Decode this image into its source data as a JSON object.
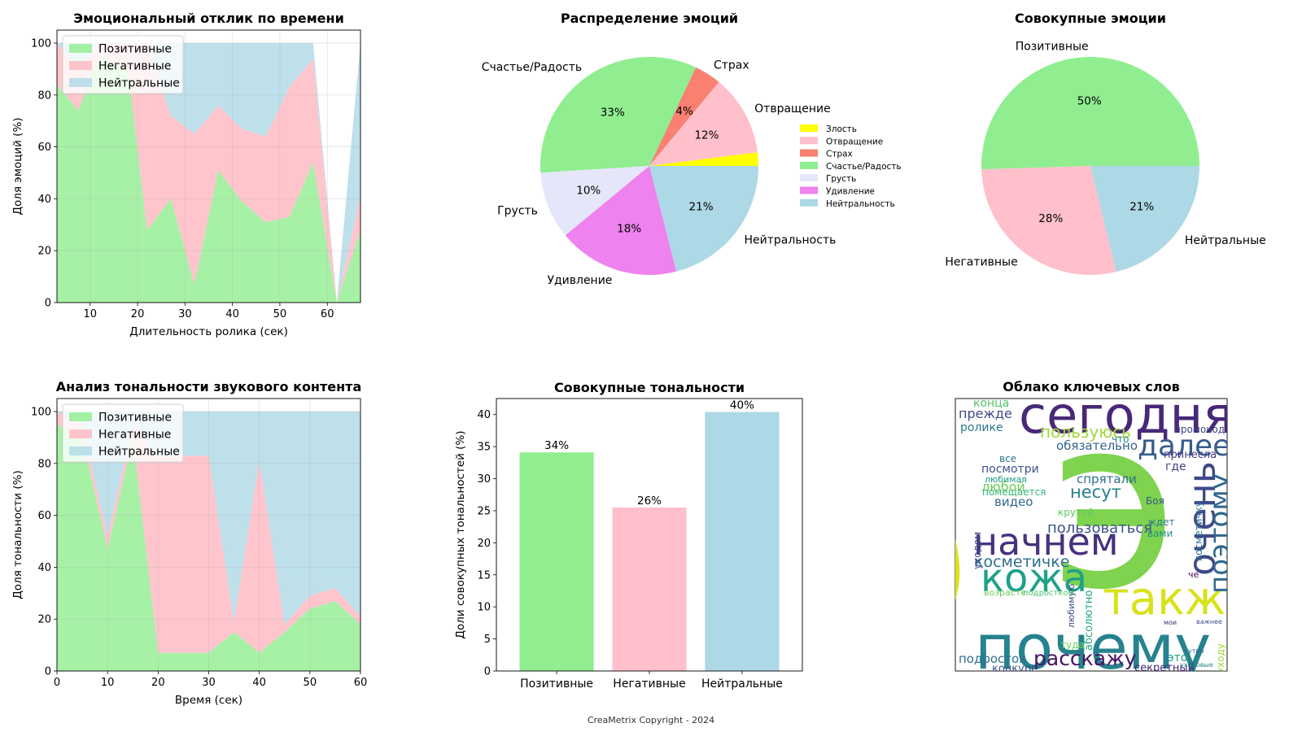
{
  "footer": "CreaMetrix Copyright - 2024",
  "chart_data": [
    {
      "id": "emotional_response",
      "type": "area",
      "title": "Эмоциональный отклик по времени",
      "xlabel": "Длительность ролика (сек)",
      "ylabel": "Доля эмоций (%)",
      "xlim": [
        3,
        67
      ],
      "ylim": [
        0,
        105
      ],
      "xticks": [
        10,
        20,
        30,
        40,
        50,
        60
      ],
      "yticks": [
        0,
        20,
        40,
        60,
        80,
        100
      ],
      "grid": true,
      "legend": "top-left",
      "x": [
        3,
        7.5,
        12,
        18,
        22,
        27,
        32,
        37,
        42,
        47,
        52,
        57,
        62,
        67
      ],
      "series": [
        {
          "name": "Позитивные",
          "color": "#90ee90",
          "values": [
            84,
            74,
            95,
            90,
            28,
            40,
            7,
            51,
            39,
            31,
            33,
            54,
            0,
            28
          ]
        },
        {
          "name": "Негативные",
          "color": "#ffb6c1",
          "values": [
            16,
            16,
            5,
            10,
            72,
            32,
            58,
            25,
            28,
            33,
            50,
            40,
            0,
            13
          ]
        },
        {
          "name": "Нейтральные",
          "color": "#add8e6",
          "values": [
            0,
            10,
            0,
            0,
            0,
            28,
            35,
            24,
            33,
            36,
            17,
            6,
            0,
            59
          ]
        }
      ]
    },
    {
      "id": "emotion_distribution",
      "type": "pie",
      "title": "Распределение эмоций",
      "legend": "right",
      "slices": [
        {
          "label": "Злость",
          "value": 2,
          "pct": "",
          "color": "#ffff00"
        },
        {
          "label": "Отвращение",
          "value": 12,
          "pct": "12%",
          "color": "#ffc0cb"
        },
        {
          "label": "Страх",
          "value": 4,
          "pct": "4%",
          "color": "#fa8072"
        },
        {
          "label": "Счастье/Радость",
          "value": 33,
          "pct": "33%",
          "color": "#90ee90"
        },
        {
          "label": "Грусть",
          "value": 10,
          "pct": "10%",
          "color": "#e6e6fa"
        },
        {
          "label": "Удивление",
          "value": 18,
          "pct": "18%",
          "color": "#ee82ee"
        },
        {
          "label": "Нейтральность",
          "value": 21,
          "pct": "21%",
          "color": "#add8e6"
        }
      ],
      "outer_labels": [
        "",
        "Отвращение",
        "Страх",
        "Счастье/Радость",
        "Грусть",
        "Удивление",
        "Нейтральность"
      ]
    },
    {
      "id": "total_emotions",
      "type": "pie",
      "title": "Совокупные эмоции",
      "slices": [
        {
          "label": "Позитивные",
          "value": 50,
          "pct": "50%",
          "color": "#90ee90"
        },
        {
          "label": "Негативные",
          "value": 28,
          "pct": "28%",
          "color": "#ffc0cb"
        },
        {
          "label": "Нейтральные",
          "value": 21,
          "pct": "21%",
          "color": "#add8e6"
        }
      ]
    },
    {
      "id": "audio_tonality",
      "type": "area",
      "title": "Анализ тональности звукового контента",
      "xlabel": "Время (сек)",
      "ylabel": "Доля тональности (%)",
      "xlim": [
        0,
        60
      ],
      "ylim": [
        0,
        105
      ],
      "xticks": [
        0,
        10,
        20,
        30,
        40,
        50,
        60
      ],
      "yticks": [
        0,
        20,
        40,
        60,
        80,
        100
      ],
      "grid": true,
      "legend": "top-left",
      "x": [
        0,
        5,
        10,
        15,
        20,
        25,
        30,
        35,
        40,
        45,
        50,
        55,
        60
      ],
      "series": [
        {
          "name": "Позитивные",
          "color": "#90ee90",
          "values": [
            95,
            90,
            47,
            90,
            7,
            7,
            7,
            15,
            7,
            15,
            24,
            27,
            18
          ]
        },
        {
          "name": "Негативные",
          "color": "#ffb6c1",
          "values": [
            5,
            5,
            5,
            5,
            76,
            76,
            76,
            4,
            74,
            3,
            5,
            5,
            3
          ]
        },
        {
          "name": "Нейтральные",
          "color": "#add8e6",
          "values": [
            0,
            5,
            48,
            5,
            17,
            17,
            17,
            81,
            19,
            82,
            71,
            68,
            79
          ]
        }
      ]
    },
    {
      "id": "total_tonality",
      "type": "bar",
      "title": "Совокупные тональности",
      "ylabel": "Доли совокупных тональностей (%)",
      "ylim": [
        0,
        42.5
      ],
      "yticks": [
        0,
        5,
        10,
        15,
        20,
        25,
        30,
        35,
        40
      ],
      "categories": [
        "Позитивные",
        "Негативные",
        "Нейтральные"
      ],
      "values": [
        34.1,
        25.5,
        40.4
      ],
      "value_labels": [
        "34%",
        "26%",
        "40%"
      ],
      "colors": [
        "#90ee90",
        "#ffc0cb",
        "#add8e6"
      ]
    },
    {
      "id": "word_cloud",
      "type": "wordcloud",
      "title": "Облако ключевых слов",
      "words": [
        {
          "text": "э",
          "color": "#7fd34e"
        },
        {
          "text": "е",
          "color": "#dde318"
        },
        {
          "text": "сегодня",
          "color": "#482878"
        },
        {
          "text": "почему",
          "color": "#26828e"
        },
        {
          "text": "также",
          "color": "#d8e219"
        },
        {
          "text": "начнем",
          "color": "#46327e"
        },
        {
          "text": "кожа",
          "color": "#1fa188"
        },
        {
          "text": "очень",
          "color": "#3e4a89"
        },
        {
          "text": "поэтому",
          "color": "#31688e"
        },
        {
          "text": "далее",
          "color": "#365c8d"
        },
        {
          "text": "расскажу",
          "color": "#471365"
        },
        {
          "text": "косметичке",
          "color": "#2d708e"
        },
        {
          "text": "пользуюсь",
          "color": "#a0da39"
        },
        {
          "text": "пользоваться",
          "color": "#3b528b"
        },
        {
          "text": "несут",
          "color": "#277f8e"
        },
        {
          "text": "спрятали",
          "color": "#2c728e"
        },
        {
          "text": "обязательно",
          "color": "#33638d"
        },
        {
          "text": "посмотри",
          "color": "#3b528b"
        },
        {
          "text": "любой",
          "color": "#6ece58"
        },
        {
          "text": "видео",
          "color": "#31688e"
        },
        {
          "text": "помещается",
          "color": "#35b779"
        },
        {
          "text": "прежде",
          "color": "#3e4a89"
        },
        {
          "text": "ролике",
          "color": "#2a788e"
        },
        {
          "text": "конца",
          "color": "#52c569"
        },
        {
          "text": "подросток",
          "color": "#2d708e"
        },
        {
          "text": "конкурс",
          "color": "#3b528b"
        },
        {
          "text": "началась",
          "color": "#35b779"
        },
        {
          "text": "секретный",
          "color": "#482878"
        },
        {
          "text": "это",
          "color": "#1f9e89"
        },
        {
          "text": "туда",
          "color": "#6ece58"
        },
        {
          "text": "абсолютно",
          "color": "#22a884"
        },
        {
          "text": "любимую",
          "color": "#3e4a89"
        },
        {
          "text": "крутой",
          "color": "#5ec962"
        },
        {
          "text": "ждет",
          "color": "#2a788e"
        },
        {
          "text": "вами",
          "color": "#21918c"
        },
        {
          "text": "Боя",
          "color": "#3b528b"
        },
        {
          "text": "где",
          "color": "#414487"
        },
        {
          "text": "принесла",
          "color": "#443a83"
        },
        {
          "text": "промокод",
          "color": "#404688"
        },
        {
          "text": "что",
          "color": "#25858e"
        },
        {
          "text": "все",
          "color": "#2c728e"
        },
        {
          "text": "любимая",
          "color": "#1fa188"
        },
        {
          "text": "возрасте",
          "color": "#6ece58"
        },
        {
          "text": "подростком",
          "color": "#4ac16d"
        },
        {
          "text": "косметичку",
          "color": "#2c728e"
        },
        {
          "text": "уходом",
          "color": "#3e4a89"
        },
        {
          "text": "уходовые",
          "color": "#24878e"
        },
        {
          "text": "утро",
          "color": "#31688e"
        },
        {
          "text": "уходу",
          "color": "#a0da39"
        },
        {
          "text": "че",
          "color": "#440154"
        },
        {
          "text": "важнее",
          "color": "#3b528b"
        },
        {
          "text": "мои",
          "color": "#482878"
        }
      ]
    }
  ]
}
